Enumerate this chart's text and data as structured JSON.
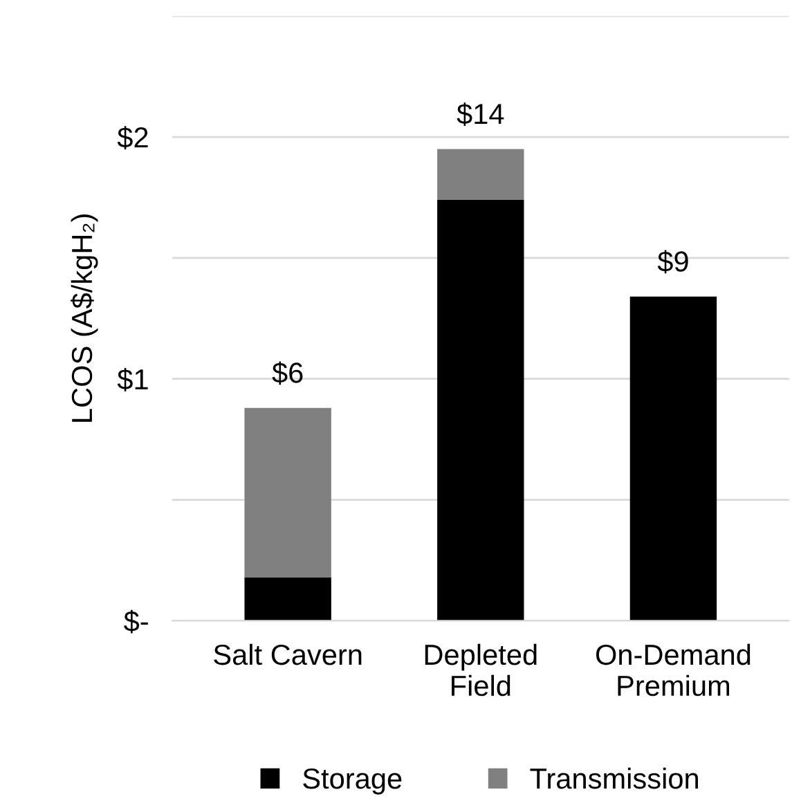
{
  "chart_data": {
    "type": "bar",
    "ylabel": "LCOS (A$/kgH₂)",
    "categories": [
      "Salt Cavern",
      "Depleted\nField",
      "On-Demand\nPremium"
    ],
    "stacked": true,
    "series": [
      {
        "name": "Storage",
        "color": "#000000",
        "values": [
          0.18,
          1.74,
          1.34
        ]
      },
      {
        "name": "Transmission",
        "color": "#808080",
        "values": [
          0.7,
          0.21,
          0
        ]
      }
    ],
    "annotations": [
      {
        "text": "$6",
        "x": "Salt Cavern",
        "y": 0.88
      },
      {
        "text": "$14",
        "x": "Depleted\nField",
        "y": 1.95
      },
      {
        "text": "$9",
        "x": "On-Demand\nPremium",
        "y": 1.34
      }
    ],
    "ylim": [
      0,
      2.5
    ],
    "yticks": [
      {
        "value": 0,
        "label": "$-"
      },
      {
        "value": 0.5,
        "label": null
      },
      {
        "value": 1,
        "label": "$1"
      },
      {
        "value": 1.5,
        "label": null
      },
      {
        "value": 2,
        "label": "$2"
      },
      {
        "value": 2.5,
        "label": null
      }
    ],
    "grid": "y",
    "legend": "bottom"
  }
}
